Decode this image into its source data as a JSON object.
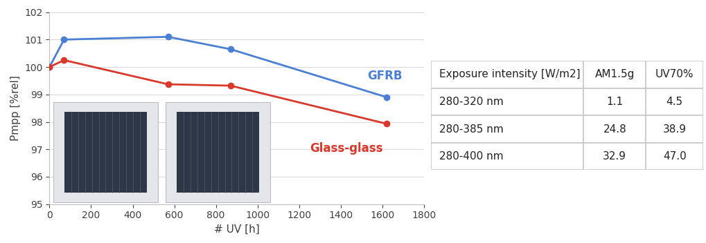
{
  "chart_data": {
    "type": "line",
    "x_label": "# UV [h]",
    "y_label": "Pmpp [%rel]",
    "x": [
      0,
      70,
      570,
      870,
      1620
    ],
    "series": [
      {
        "name": "GFRB",
        "color": "#4a7fd4",
        "marker": "o",
        "line_style": "solid",
        "values": [
          100.0,
          101.0,
          101.1,
          100.65,
          98.9
        ]
      },
      {
        "name": "Glass-glass",
        "color": "#d9382b",
        "marker": "o",
        "line_style": "solid",
        "values": [
          100.0,
          100.25,
          99.37,
          99.32,
          97.93
        ]
      }
    ],
    "xlim": [
      0,
      1800
    ],
    "xticks": [
      0,
      200,
      400,
      600,
      800,
      1000,
      1200,
      1400,
      1600,
      1800
    ],
    "ylim": [
      95,
      102
    ],
    "yticks": [
      95,
      96,
      97,
      98,
      99,
      100,
      101,
      102
    ],
    "grid": true
  },
  "table": {
    "header": [
      "Exposure intensity [W/m2]",
      "AM1.5g",
      "UV70%"
    ],
    "rows": [
      [
        "280-320 nm",
        "1.1",
        "4.5"
      ],
      [
        "280-385 nm",
        "24.8",
        "38.9"
      ],
      [
        "280-400 nm",
        "32.9",
        "47.0"
      ]
    ]
  }
}
